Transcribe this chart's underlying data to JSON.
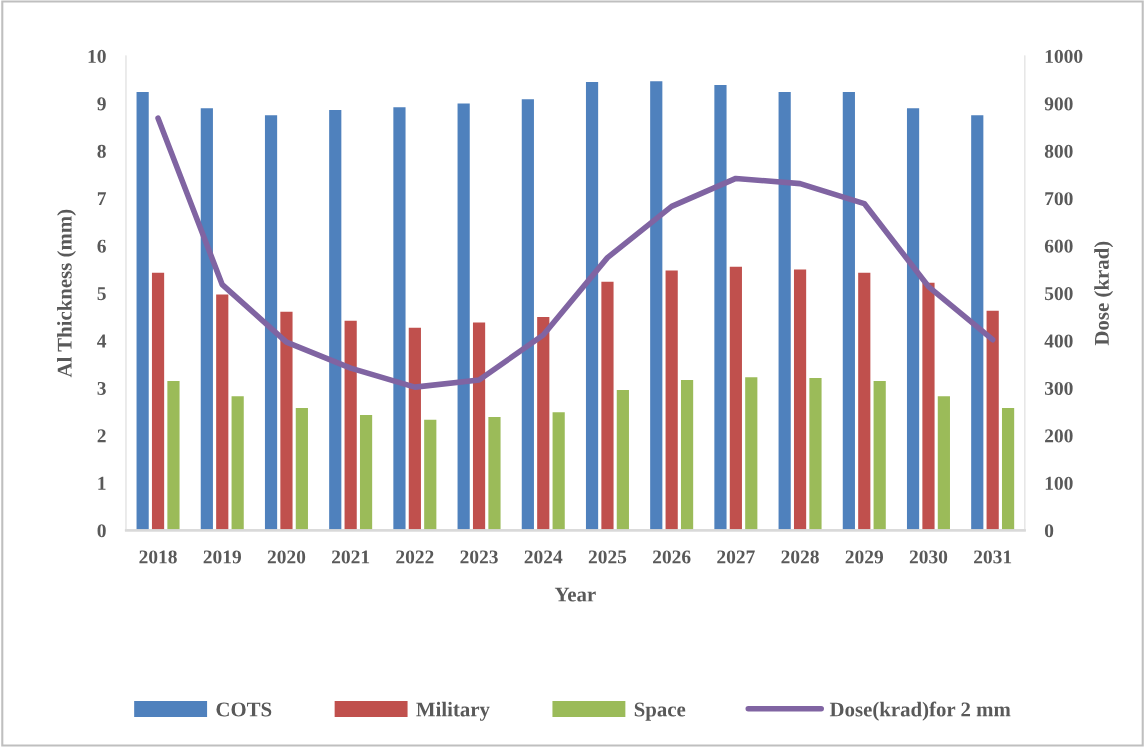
{
  "chart_data": {
    "type": "bar",
    "xlabel": "Year",
    "ylabel": "Al Thickness (mm)",
    "y2label": "Dose (krad)",
    "categories": [
      "2018",
      "2019",
      "2020",
      "2021",
      "2022",
      "2023",
      "2024",
      "2025",
      "2026",
      "2027",
      "2028",
      "2029",
      "2030",
      "2031"
    ],
    "series": [
      {
        "name": "COTS",
        "color": "#4f81bd",
        "values": [
          9.24,
          8.9,
          8.75,
          8.86,
          8.92,
          9.0,
          9.09,
          9.45,
          9.47,
          9.39,
          9.24,
          9.24,
          8.9,
          8.75
        ]
      },
      {
        "name": "Military",
        "color": "#c0504d",
        "values": [
          5.43,
          4.97,
          4.61,
          4.42,
          4.27,
          4.38,
          4.5,
          5.24,
          5.48,
          5.56,
          5.5,
          5.43,
          5.22,
          4.63
        ]
      },
      {
        "name": "Space",
        "color": "#9bbb59",
        "values": [
          3.15,
          2.83,
          2.58,
          2.43,
          2.33,
          2.39,
          2.49,
          2.96,
          3.17,
          3.23,
          3.21,
          3.15,
          2.83,
          2.58
        ]
      },
      {
        "name": "Dose(krad)for 2 mm",
        "color": "#8064a2",
        "type": "line",
        "axis": "y2",
        "values": [
          869,
          518,
          397,
          342,
          302,
          317,
          412,
          575,
          683,
          742,
          731,
          689,
          514,
          402
        ]
      }
    ],
    "ylim": [
      0,
      10
    ],
    "yticks": [
      0,
      1,
      2,
      3,
      4,
      5,
      6,
      7,
      8,
      9,
      10
    ],
    "y2lim": [
      0,
      1000
    ],
    "y2ticks": [
      0,
      100,
      200,
      300,
      400,
      500,
      600,
      700,
      800,
      900,
      1000
    ],
    "grid": false,
    "legend": "bottom",
    "marker": "none",
    "line_style": "solid"
  }
}
